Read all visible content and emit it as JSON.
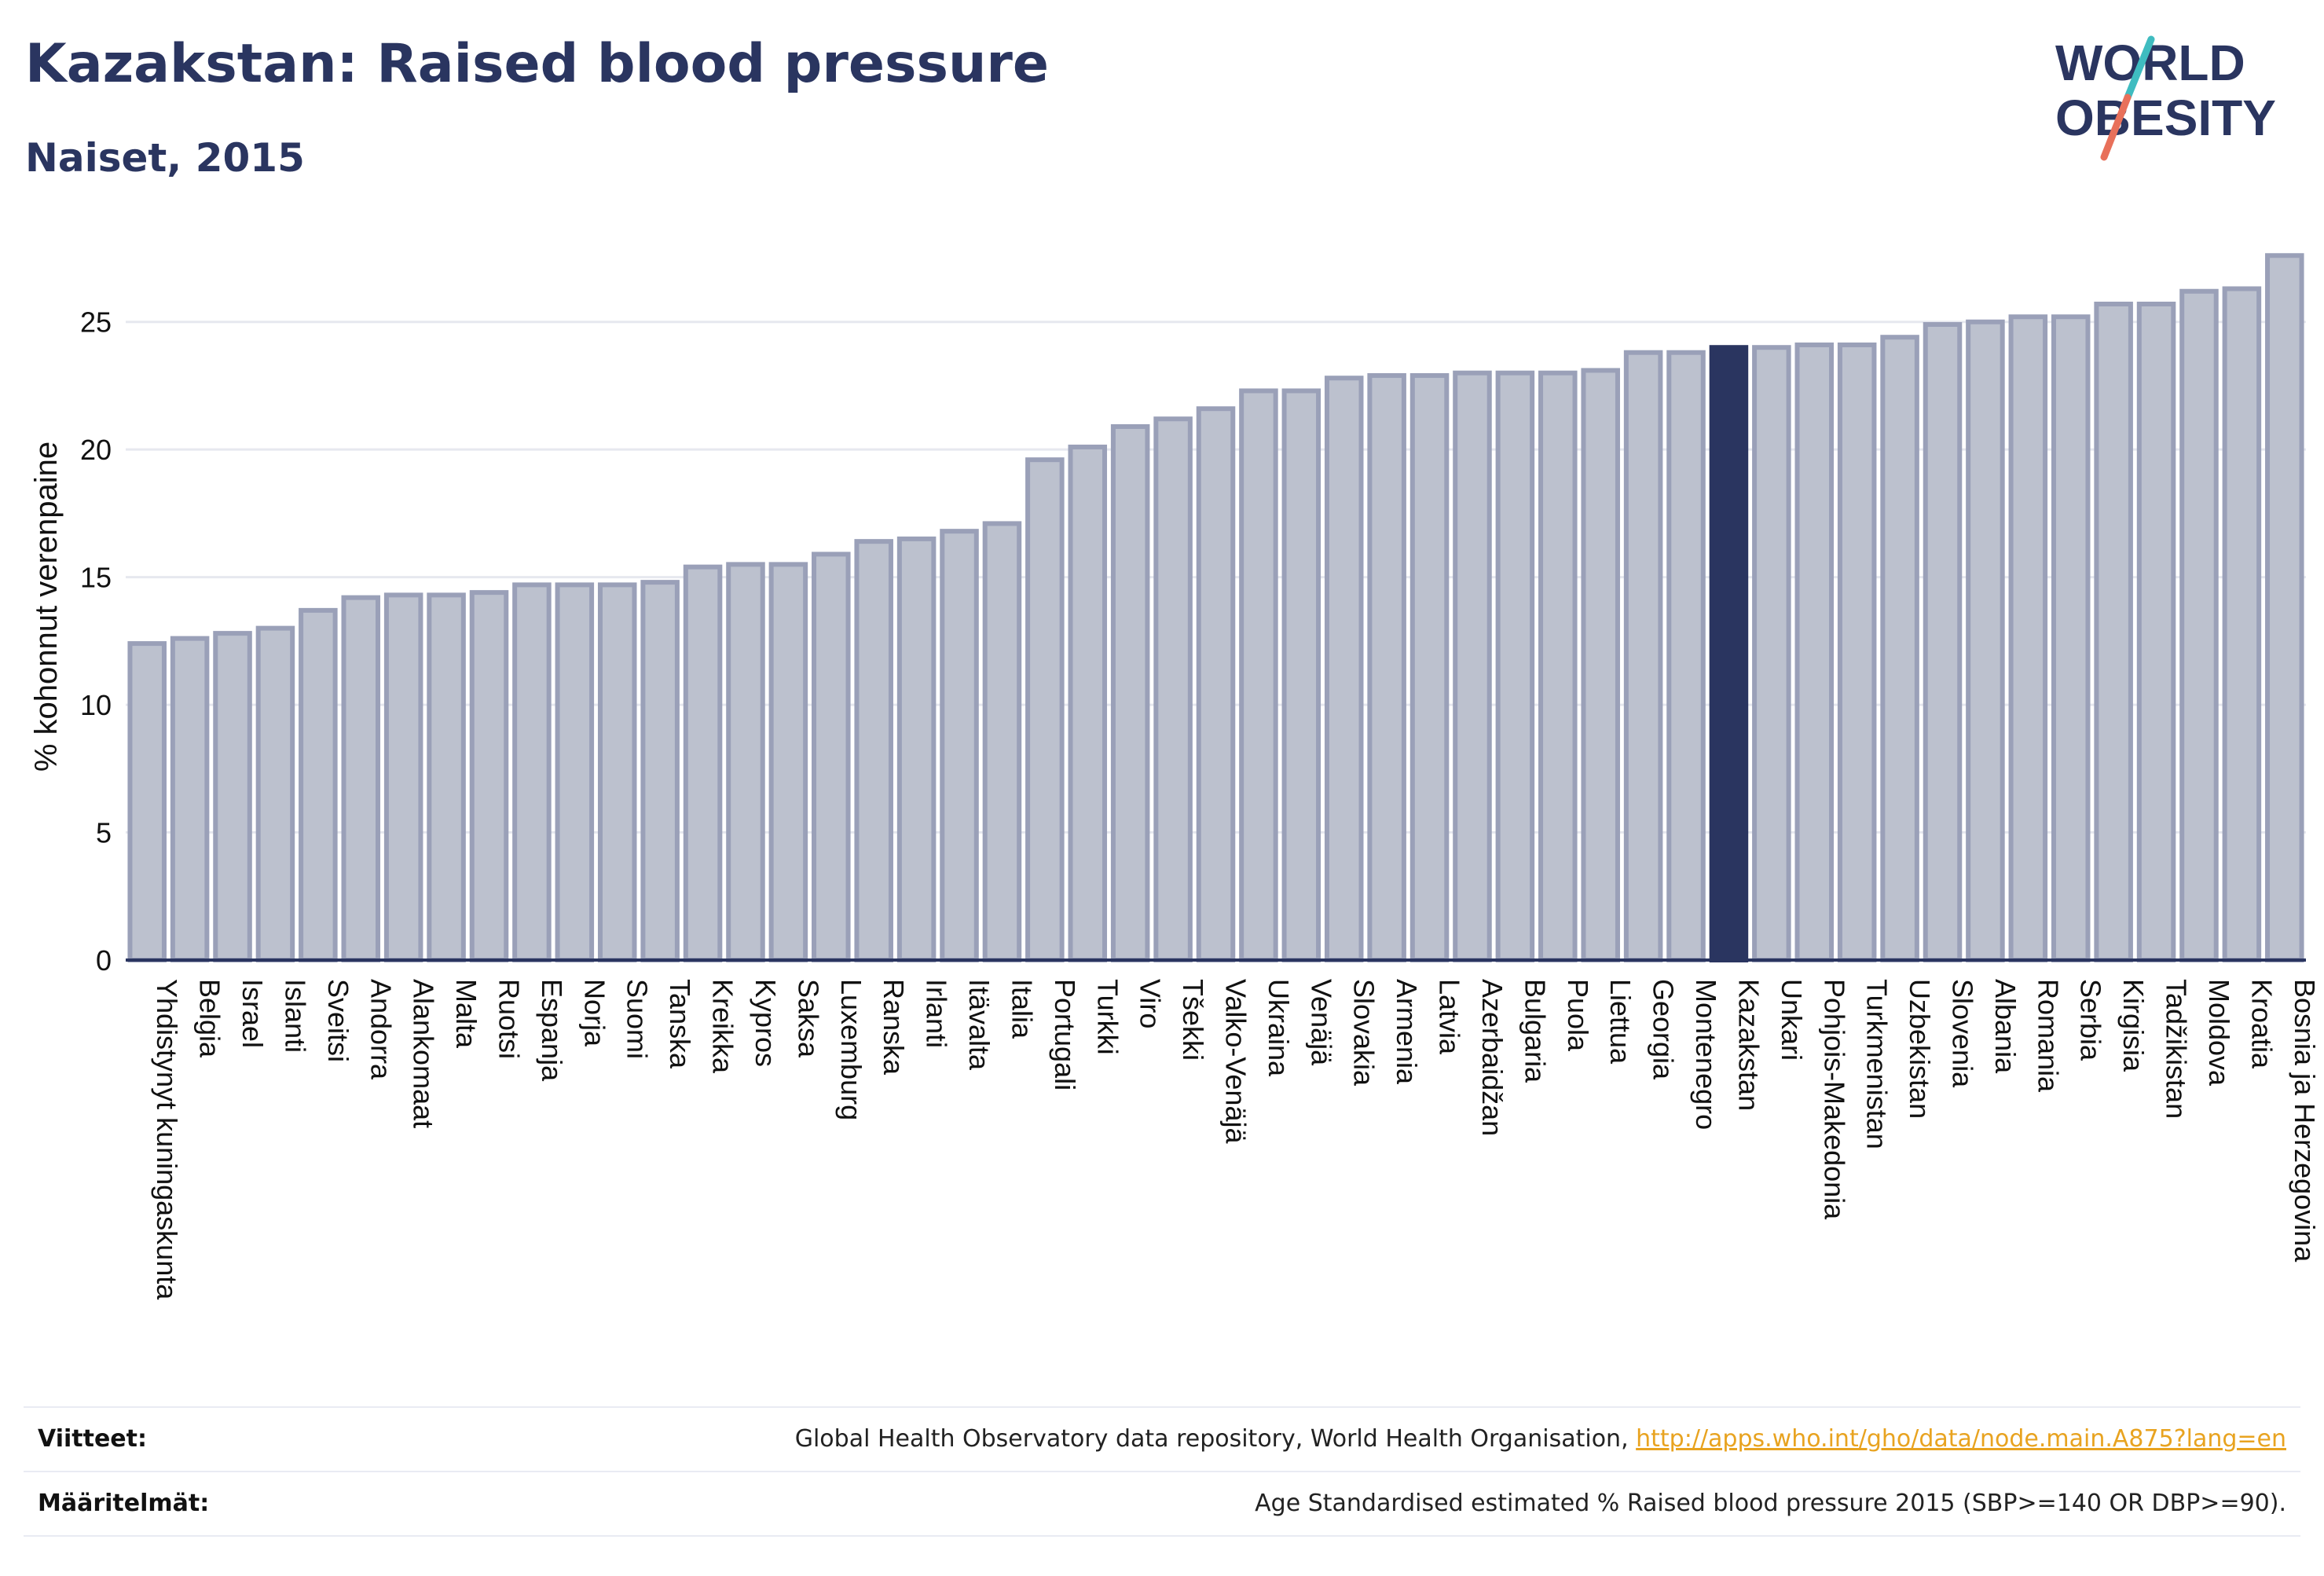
{
  "header": {
    "title": "Kazakstan: Raised blood pressure",
    "subtitle": "Naiset, 2015"
  },
  "logo": {
    "text_line1": "WORLD",
    "text_line2": "OBESITY",
    "colors": {
      "text": "#2a3560",
      "slash_teal": "#3fbcc0",
      "slash_coral": "#e8705a"
    }
  },
  "footer": {
    "references_label": "Viitteet:",
    "references_text": "Global Health Observatory data repository, World Health Organisation, ",
    "references_link": "http://apps.who.int/gho/data/node.main.A875?lang=en",
    "definitions_label": "Määritelmät:",
    "definitions_text": "Age Standardised estimated % Raised blood pressure 2015 (SBP>=140 OR DBP>=90)."
  },
  "colors": {
    "bar_fill": "#bcc1ce",
    "bar_stroke": "#9aa0b8",
    "highlight_fill": "#2a3560",
    "grid": "#e6e8ef",
    "axis": "#2a3560",
    "text": "#111111"
  },
  "chart_data": {
    "type": "bar",
    "title": "Kazakstan: Raised blood pressure",
    "subtitle": "Naiset, 2015",
    "xlabel": "",
    "ylabel": "% kohonnut verenpaine",
    "ylim": [
      0,
      27.7
    ],
    "yticks": [
      0,
      5,
      10,
      15,
      20,
      25
    ],
    "grid": true,
    "highlight": "Kazakstan",
    "categories": [
      "Yhdistynyt kuningaskunta",
      "Belgia",
      "Israel",
      "Islanti",
      "Sveitsi",
      "Andorra",
      "Alankomaat",
      "Malta",
      "Ruotsi",
      "Espanja",
      "Norja",
      "Suomi",
      "Tanska",
      "Kreikka",
      "Kypros",
      "Saksa",
      "Luxemburg",
      "Ranska",
      "Irlanti",
      "Itävalta",
      "Italia",
      "Portugali",
      "Turkki",
      "Viro",
      "Tšekki",
      "Valko-Venäjä",
      "Ukraina",
      "Venäjä",
      "Slovakia",
      "Armenia",
      "Latvia",
      "Azerbaidžan",
      "Bulgaria",
      "Puola",
      "Liettua",
      "Georgia",
      "Montenegro",
      "Kazakstan",
      "Unkari",
      "Pohjois-Makedonia",
      "Turkmenistan",
      "Uzbekistan",
      "Slovenia",
      "Albania",
      "Romania",
      "Serbia",
      "Kirgisia",
      "Tadžikistan",
      "Moldova",
      "Kroatia",
      "Bosnia ja Herzegovina"
    ],
    "values": [
      12.4,
      12.6,
      12.8,
      13.0,
      13.7,
      14.2,
      14.3,
      14.3,
      14.4,
      14.7,
      14.7,
      14.7,
      14.8,
      15.4,
      15.5,
      15.5,
      15.9,
      16.4,
      16.5,
      16.8,
      17.1,
      19.6,
      20.1,
      20.9,
      21.2,
      21.6,
      22.3,
      22.3,
      22.8,
      22.9,
      22.9,
      23.0,
      23.0,
      23.0,
      23.1,
      23.8,
      23.8,
      24.0,
      24.0,
      24.1,
      24.1,
      24.4,
      24.9,
      25.0,
      25.2,
      25.2,
      25.7,
      25.7,
      26.2,
      26.3,
      27.6
    ]
  }
}
